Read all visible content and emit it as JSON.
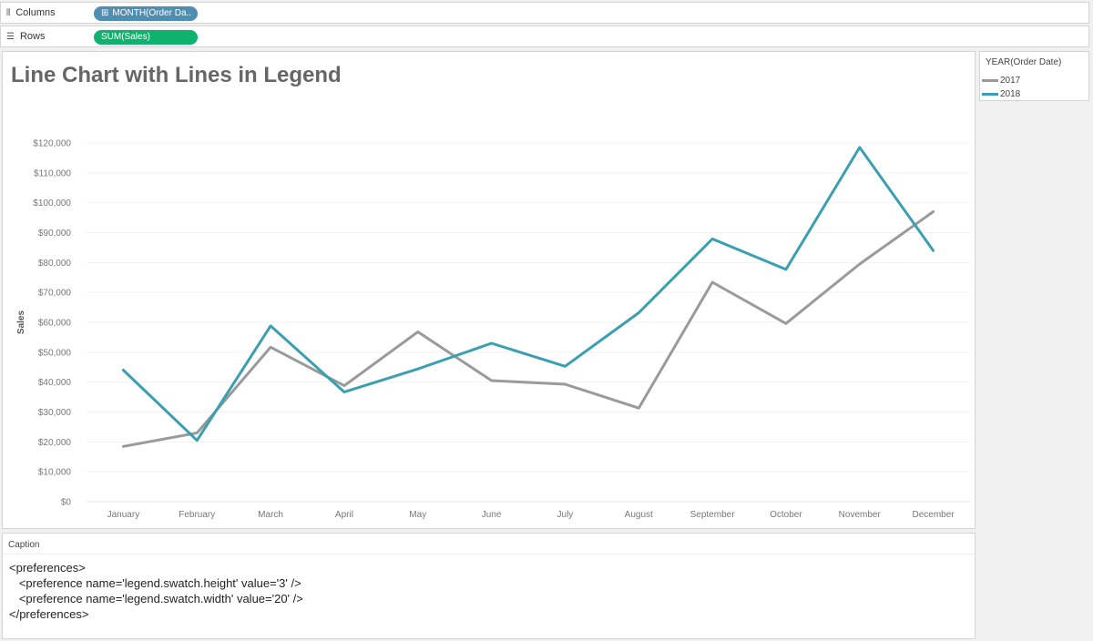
{
  "shelves": {
    "columns": {
      "label": "Columns",
      "icon": "columns-icon",
      "pill": "MONTH(Order Da..",
      "pill_prefix": "⊞"
    },
    "rows": {
      "label": "Rows",
      "icon": "rows-icon",
      "pill": "SUM(Sales)"
    }
  },
  "legend": {
    "title": "YEAR(Order Date)",
    "items": [
      {
        "label": "2017",
        "color": "#999a9b"
      },
      {
        "label": "2018",
        "color": "#3a9fb0"
      }
    ]
  },
  "caption": {
    "title": "Caption",
    "lines": [
      "<preferences>",
      "   <preference name='legend.swatch.height' value='3' />",
      "   <preference name='legend.swatch.width' value='20' />",
      "</preferences>"
    ]
  },
  "chart_data": {
    "type": "line",
    "title": "Line Chart with Lines in Legend",
    "xlabel": "",
    "ylabel": "Sales",
    "categories": [
      "January",
      "February",
      "March",
      "April",
      "May",
      "June",
      "July",
      "August",
      "September",
      "October",
      "November",
      "December"
    ],
    "ylim": [
      0,
      120000
    ],
    "yticks": [
      0,
      10000,
      20000,
      30000,
      40000,
      50000,
      60000,
      70000,
      80000,
      90000,
      100000,
      110000,
      120000
    ],
    "ytick_labels": [
      "$0",
      "$10,000",
      "$20,000",
      "$30,000",
      "$40,000",
      "$50,000",
      "$60,000",
      "$70,000",
      "$80,000",
      "$90,000",
      "$100,000",
      "$110,000",
      "$120,000"
    ],
    "grid": true,
    "legend_position": "right",
    "series": [
      {
        "name": "2017",
        "color": "#999a9b",
        "values": [
          18500,
          23000,
          51700,
          38800,
          56800,
          40500,
          39300,
          31300,
          73400,
          59600,
          79500,
          97000
        ]
      },
      {
        "name": "2018",
        "color": "#3a9fb0",
        "values": [
          44000,
          20500,
          58800,
          36700,
          44400,
          53000,
          45300,
          63200,
          87900,
          77700,
          118500,
          84000
        ]
      }
    ]
  }
}
